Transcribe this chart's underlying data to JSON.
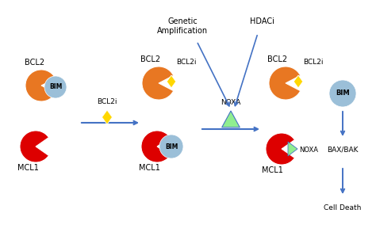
{
  "bg_color": "#ffffff",
  "orange_color": "#E87722",
  "red_color": "#DD0000",
  "blue_color": "#9BBFD8",
  "yellow_color": "#FFD700",
  "green_color": "#90EE90",
  "arrow_color": "#4472C4",
  "text_color": "#000000",
  "label_fontsize": 7.0,
  "small_fontsize": 6.5,
  "title_text": "Genetic\nAmplification",
  "hdaci_text": "HDACi",
  "noxa_text": "NOXA",
  "bim_text": "BIM",
  "bcl2_text": "BCL2",
  "bcl2i_text": "BCL2i",
  "mcl1_text": "MCL1",
  "baxbak_text": "BAX/BAK",
  "celldeath_text": "Cell Death"
}
